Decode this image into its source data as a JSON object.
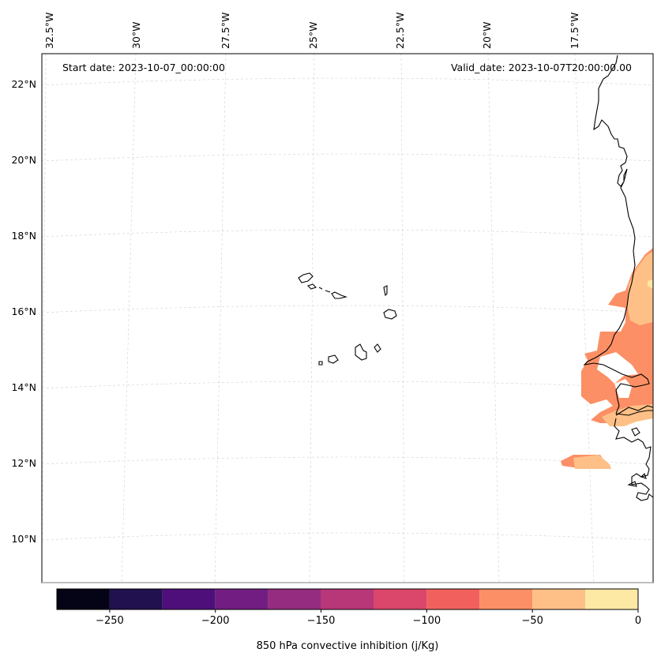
{
  "header": {
    "start_date": "Start date: 2023-10-07_00:00:00",
    "valid_date": "Valid_date: 2023-10-07T20:00:00.00"
  },
  "lon_labels": [
    "32.5°W",
    "30°W",
    "27.5°W",
    "25°W",
    "22.5°W",
    "20°W",
    "17.5°W"
  ],
  "lat_labels": [
    "22°N",
    "20°N",
    "18°N",
    "16°N",
    "14°N",
    "12°N",
    "10°N"
  ],
  "colorbar": {
    "label": "850 hPa convective inhibition (j/Kg)",
    "tick_labels": [
      "−250",
      "−200",
      "−150",
      "−100",
      "−50",
      "0"
    ],
    "ticks": [
      -250,
      -200,
      -150,
      -100,
      -50,
      0
    ],
    "range": [
      -275,
      0
    ],
    "levels": [
      -275,
      -250,
      -225,
      -200,
      -175,
      -150,
      -125,
      -100,
      -75,
      -50,
      -25,
      0
    ],
    "colors": [
      "#050417",
      "#21114e",
      "#4f0f7b",
      "#721d81",
      "#952c80",
      "#b83779",
      "#db476a",
      "#f1605d",
      "#fc8f65",
      "#fec087",
      "#fde8a4"
    ]
  },
  "field_colors": {
    "cin_-75_-50": "#fc8f65",
    "cin_-50_-25": "#fec087",
    "cin_-25_0": "#fde8a4"
  }
}
